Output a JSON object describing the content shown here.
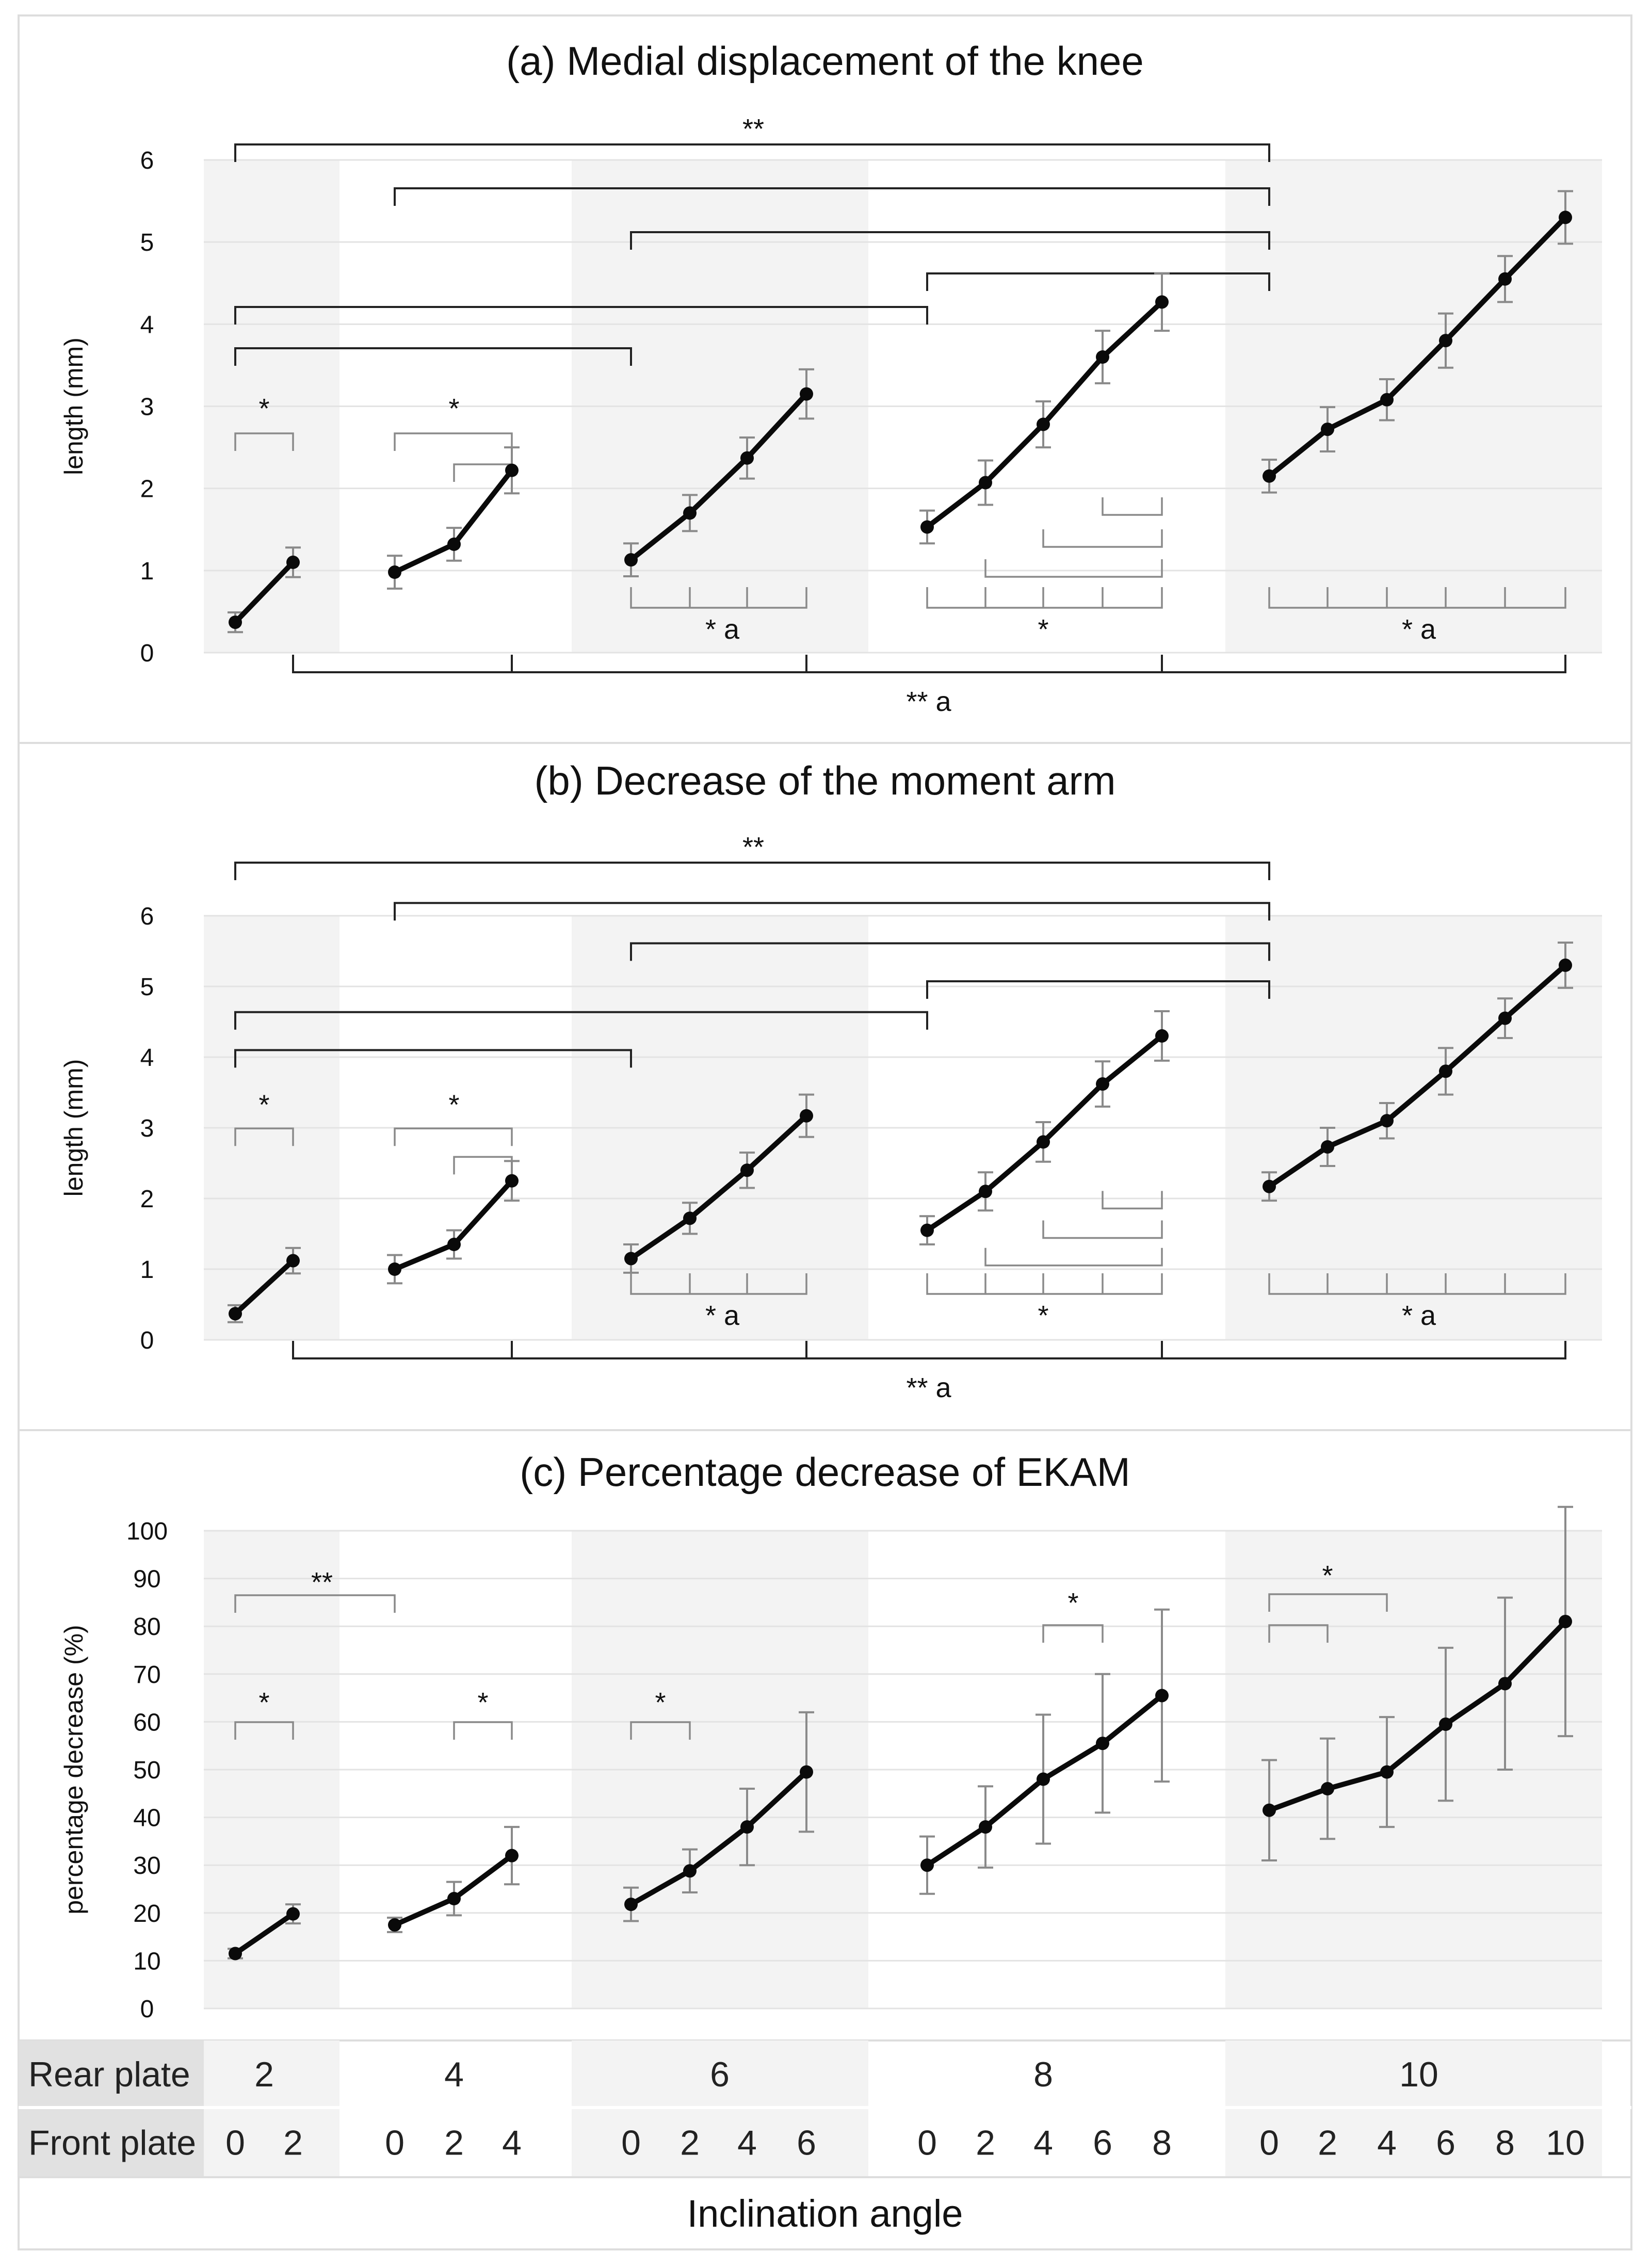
{
  "chart_data": [
    {
      "type": "line",
      "title": "(a) Medial displacement of the knee",
      "ylabel": "length (mm)",
      "ylim": [
        0,
        6
      ],
      "yticks": [
        "0",
        "1",
        "2",
        "3",
        "4",
        "5",
        "6"
      ],
      "series": [
        {
          "name": "Rear plate 2",
          "x": [
            0,
            2
          ],
          "values": [
            0.37,
            1.1
          ],
          "errors": [
            0.12,
            0.18
          ]
        },
        {
          "name": "Rear plate 4",
          "x": [
            0,
            2,
            4
          ],
          "values": [
            0.98,
            1.32,
            2.22
          ],
          "errors": [
            0.2,
            0.2,
            0.28
          ]
        },
        {
          "name": "Rear plate 6",
          "x": [
            0,
            2,
            4,
            6
          ],
          "values": [
            1.13,
            1.7,
            2.37,
            3.15
          ],
          "errors": [
            0.2,
            0.22,
            0.25,
            0.3
          ]
        },
        {
          "name": "Rear plate 8",
          "x": [
            0,
            2,
            4,
            6,
            8
          ],
          "values": [
            1.53,
            2.07,
            2.78,
            3.6,
            4.27
          ],
          "errors": [
            0.2,
            0.27,
            0.28,
            0.32,
            0.35
          ]
        },
        {
          "name": "Rear plate 10",
          "x": [
            0,
            2,
            4,
            6,
            8,
            10
          ],
          "values": [
            2.15,
            2.72,
            3.08,
            3.8,
            4.55,
            5.3
          ],
          "errors": [
            0.2,
            0.27,
            0.25,
            0.33,
            0.28,
            0.32
          ]
        }
      ],
      "significance_marks": [
        "**",
        "*",
        "*",
        "* a",
        "*",
        "* a",
        "** a"
      ]
    },
    {
      "type": "line",
      "title": "(b) Decrease of the moment arm",
      "ylabel": "length (mm)",
      "ylim": [
        0,
        6
      ],
      "yticks": [
        "0",
        "1",
        "2",
        "3",
        "4",
        "5",
        "6"
      ],
      "series": [
        {
          "name": "Rear plate 2",
          "x": [
            0,
            2
          ],
          "values": [
            0.37,
            1.12
          ],
          "errors": [
            0.12,
            0.18
          ]
        },
        {
          "name": "Rear plate 4",
          "x": [
            0,
            2,
            4
          ],
          "values": [
            1.0,
            1.35,
            2.25
          ],
          "errors": [
            0.2,
            0.2,
            0.28
          ]
        },
        {
          "name": "Rear plate 6",
          "x": [
            0,
            2,
            4,
            6
          ],
          "values": [
            1.15,
            1.72,
            2.4,
            3.17
          ],
          "errors": [
            0.2,
            0.22,
            0.25,
            0.3
          ]
        },
        {
          "name": "Rear plate 8",
          "x": [
            0,
            2,
            4,
            6,
            8
          ],
          "values": [
            1.55,
            2.1,
            2.8,
            3.62,
            4.3
          ],
          "errors": [
            0.2,
            0.27,
            0.28,
            0.32,
            0.35
          ]
        },
        {
          "name": "Rear plate 10",
          "x": [
            0,
            2,
            4,
            6,
            8,
            10
          ],
          "values": [
            2.17,
            2.73,
            3.1,
            3.8,
            4.55,
            5.3
          ],
          "errors": [
            0.2,
            0.27,
            0.25,
            0.33,
            0.28,
            0.32
          ]
        }
      ],
      "significance_marks": [
        "**",
        "*",
        "*",
        "* a",
        "*",
        "* a",
        "** a"
      ]
    },
    {
      "type": "line",
      "title": "(c) Percentage decrease of EKAM",
      "ylabel": "percentage decrease (%)",
      "ylim": [
        0,
        100
      ],
      "yticks": [
        "0",
        "10",
        "20",
        "30",
        "40",
        "50",
        "60",
        "70",
        "80",
        "90",
        "100"
      ],
      "series": [
        {
          "name": "Rear plate 2",
          "x": [
            0,
            2
          ],
          "values": [
            11.5,
            19.8
          ],
          "errors": [
            1.0,
            2.0
          ]
        },
        {
          "name": "Rear plate 4",
          "x": [
            0,
            2,
            4
          ],
          "values": [
            17.5,
            23.0,
            32.0
          ],
          "errors": [
            1.5,
            3.5,
            6.0
          ]
        },
        {
          "name": "Rear plate 6",
          "x": [
            0,
            2,
            4,
            6
          ],
          "values": [
            21.8,
            28.8,
            38.0,
            49.5
          ],
          "errors": [
            3.5,
            4.5,
            8.0,
            12.5
          ]
        },
        {
          "name": "Rear plate 8",
          "x": [
            0,
            2,
            4,
            6,
            8
          ],
          "values": [
            30.0,
            38.0,
            48.0,
            55.5,
            65.5
          ],
          "errors": [
            6.0,
            8.5,
            13.5,
            14.5,
            18.0
          ]
        },
        {
          "name": "Rear plate 10",
          "x": [
            0,
            2,
            4,
            6,
            8,
            10
          ],
          "values": [
            41.5,
            46.0,
            49.5,
            59.5,
            68.0,
            81.0
          ],
          "errors": [
            10.5,
            10.5,
            11.5,
            16.0,
            18.0,
            24.0
          ]
        }
      ],
      "significance_marks": [
        "**",
        "*",
        "*",
        "*",
        "*",
        "*"
      ]
    }
  ],
  "x_axis": {
    "rear_label": "Rear plate",
    "front_label": "Front plate",
    "rear_values": [
      "2",
      "4",
      "6",
      "8",
      "10"
    ],
    "front_values": [
      "0",
      "2",
      "0",
      "2",
      "4",
      "0",
      "2",
      "4",
      "6",
      "0",
      "2",
      "4",
      "6",
      "8",
      "0",
      "2",
      "4",
      "6",
      "8",
      "10"
    ],
    "title": "Inclination angle"
  },
  "colors": {
    "line": "#0a0a0a",
    "error_bar": "#8a8a8a",
    "grid": "#e3e3e3",
    "band": "#f3f3f3",
    "bracket_dark": "#222222",
    "bracket_light": "#8a8a8a",
    "header_cell": "#e1e1e1"
  }
}
